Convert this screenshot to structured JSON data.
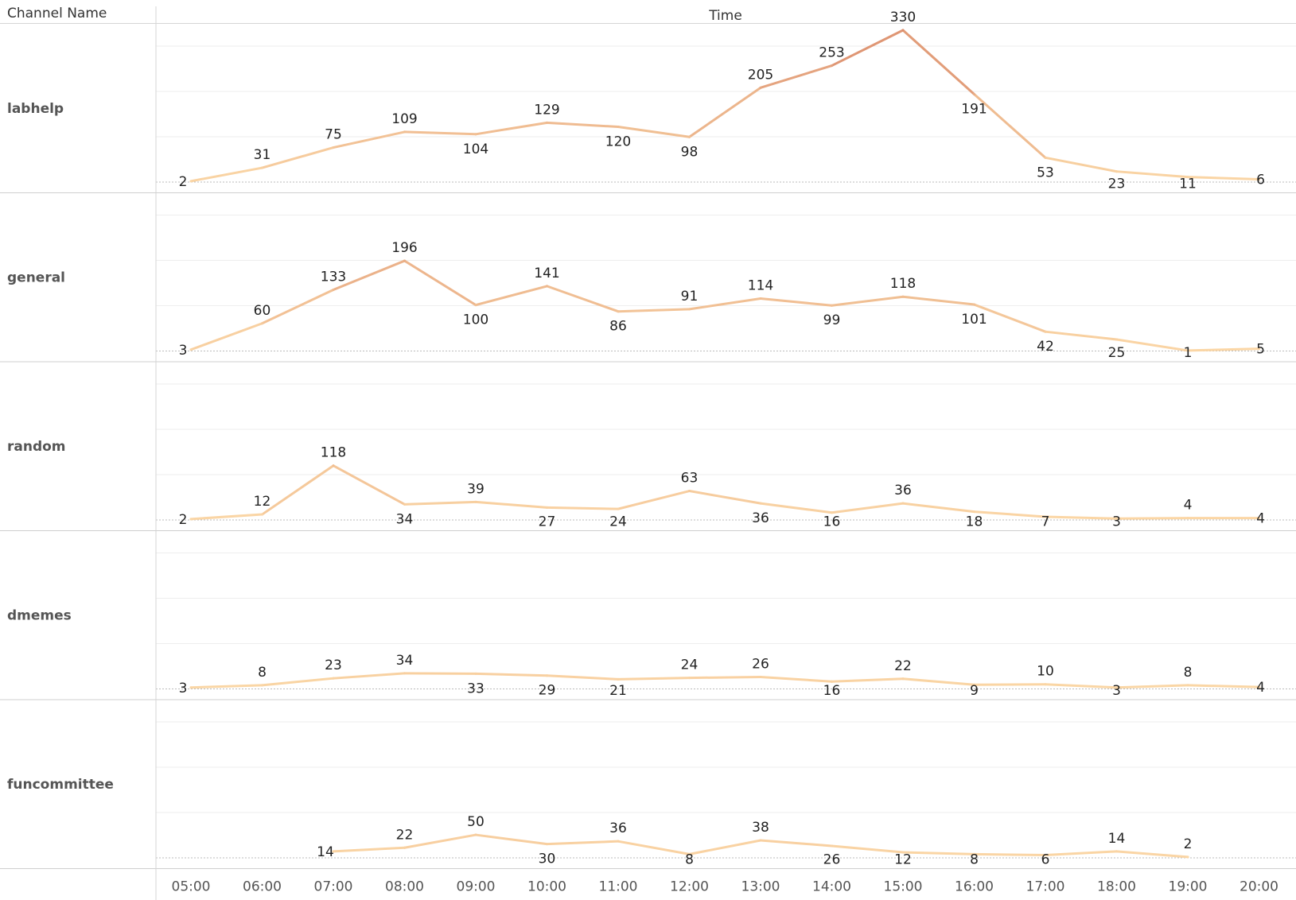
{
  "header": {
    "row_dimension": "Channel Name",
    "column_dimension": "Time"
  },
  "chart_data": {
    "type": "line",
    "title": "",
    "x": [
      "05:00",
      "06:00",
      "07:00",
      "08:00",
      "09:00",
      "10:00",
      "11:00",
      "12:00",
      "13:00",
      "14:00",
      "15:00",
      "16:00",
      "17:00",
      "18:00",
      "19:00",
      "20:00"
    ],
    "xlabel": "Time",
    "ylabel": "",
    "ylim": [
      0,
      350
    ],
    "grid": true,
    "color_low": "#fbd7a6",
    "color_high": "#d9896a",
    "panels": [
      {
        "name": "labhelp",
        "values": [
          2,
          31,
          75,
          109,
          104,
          129,
          120,
          98,
          205,
          253,
          330,
          191,
          53,
          23,
          11,
          6
        ]
      },
      {
        "name": "general",
        "values": [
          3,
          60,
          133,
          196,
          100,
          141,
          86,
          91,
          114,
          99,
          118,
          101,
          42,
          25,
          1,
          5
        ]
      },
      {
        "name": "random",
        "values": [
          2,
          12,
          118,
          34,
          39,
          27,
          24,
          63,
          36,
          16,
          36,
          18,
          7,
          3,
          4,
          4
        ]
      },
      {
        "name": "dmemes",
        "values": [
          3,
          8,
          23,
          34,
          33,
          29,
          21,
          24,
          26,
          16,
          22,
          9,
          10,
          3,
          8,
          4
        ]
      },
      {
        "name": "funcommittee",
        "values": [
          null,
          null,
          14,
          22,
          50,
          30,
          36,
          8,
          38,
          26,
          12,
          8,
          6,
          14,
          2,
          null
        ]
      }
    ]
  }
}
